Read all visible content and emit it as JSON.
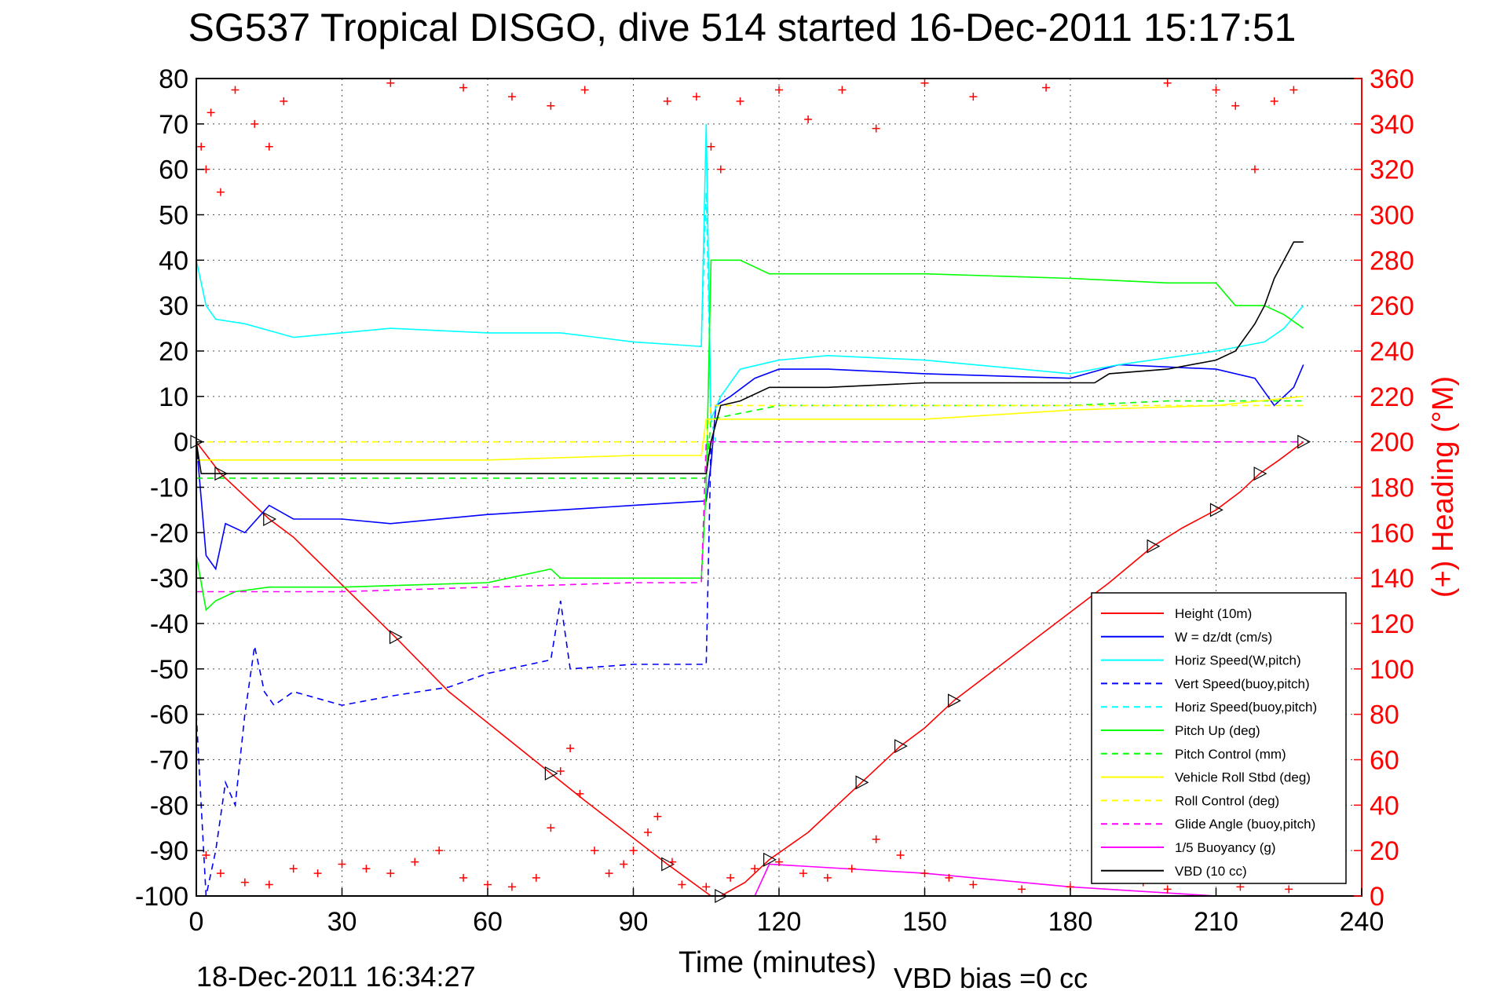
{
  "title": "SG537 Tropical DISGO, dive 514 started 16-Dec-2011 15:17:51",
  "footer": {
    "timestamp": "18-Dec-2011 16:34:27",
    "vbd_bias": "VBD bias =0 cc"
  },
  "colors": {
    "height": "#ff0000",
    "w": "#0000ff",
    "horiz_speed": "#00ffff",
    "pitch": "#00ff00",
    "roll": "#ffff00",
    "glide": "#ff00ff",
    "vbd": "#000000",
    "heading": "#ff0000"
  },
  "chart_data": {
    "type": "line",
    "xlabel": "Time (minutes)",
    "ylabel": "",
    "y2label": "(+) Heading (°M)",
    "xlim": [
      0,
      240
    ],
    "ylim": [
      -100,
      80
    ],
    "y2lim": [
      0,
      360
    ],
    "xticks": [
      "0",
      "30",
      "60",
      "90",
      "120",
      "150",
      "180",
      "210",
      "240"
    ],
    "yticks": [
      "80",
      "70",
      "60",
      "50",
      "40",
      "30",
      "20",
      "10",
      "0",
      "-10",
      "-20",
      "-30",
      "-40",
      "-50",
      "-60",
      "-70",
      "-80",
      "-90",
      "-100"
    ],
    "y2ticks": [
      "360",
      "340",
      "320",
      "300",
      "280",
      "260",
      "240",
      "220",
      "200",
      "180",
      "160",
      "140",
      "120",
      "100",
      "80",
      "60",
      "40",
      "20",
      "0"
    ],
    "grid": true,
    "legend_position": "bottom-right",
    "series": [
      {
        "name": "Height (10m)",
        "style": "solid",
        "color": "#ff0000",
        "points": [
          [
            0,
            0
          ],
          [
            5,
            -7
          ],
          [
            10,
            -12
          ],
          [
            15,
            -17
          ],
          [
            20,
            -21
          ],
          [
            41,
            -43
          ],
          [
            52,
            -55
          ],
          [
            73,
            -73
          ],
          [
            80,
            -79
          ],
          [
            97,
            -93
          ],
          [
            106,
            -100
          ],
          [
            108,
            -100
          ],
          [
            113,
            -97
          ],
          [
            118,
            -92
          ],
          [
            126,
            -86
          ],
          [
            137,
            -75
          ],
          [
            140,
            -72
          ],
          [
            145,
            -67
          ],
          [
            150,
            -63
          ],
          [
            156,
            -57
          ],
          [
            188,
            -31
          ],
          [
            197,
            -23
          ],
          [
            203,
            -19
          ],
          [
            210,
            -15
          ],
          [
            215,
            -11
          ],
          [
            219,
            -7
          ],
          [
            223,
            -4
          ],
          [
            228,
            0
          ]
        ]
      },
      {
        "name": "W = dz/dt (cm/s)",
        "style": "solid",
        "color": "#0000ff",
        "points": [
          [
            0,
            0
          ],
          [
            2,
            -25
          ],
          [
            4,
            -28
          ],
          [
            6,
            -18
          ],
          [
            10,
            -20
          ],
          [
            15,
            -14
          ],
          [
            20,
            -17
          ],
          [
            30,
            -17
          ],
          [
            40,
            -18
          ],
          [
            60,
            -16
          ],
          [
            75,
            -15
          ],
          [
            90,
            -14
          ],
          [
            105,
            -13
          ],
          [
            106,
            -5
          ],
          [
            107,
            8
          ],
          [
            110,
            10
          ],
          [
            115,
            14
          ],
          [
            120,
            16
          ],
          [
            130,
            16
          ],
          [
            150,
            15
          ],
          [
            180,
            14
          ],
          [
            190,
            17
          ],
          [
            210,
            16
          ],
          [
            218,
            14
          ],
          [
            222,
            8
          ],
          [
            226,
            12
          ],
          [
            228,
            17
          ]
        ]
      },
      {
        "name": "Horiz Speed(W,pitch)",
        "style": "solid",
        "color": "#00ffff",
        "points": [
          [
            0,
            40
          ],
          [
            2,
            30
          ],
          [
            4,
            27
          ],
          [
            10,
            26
          ],
          [
            20,
            23
          ],
          [
            40,
            25
          ],
          [
            60,
            24
          ],
          [
            75,
            24
          ],
          [
            90,
            22
          ],
          [
            104,
            21
          ],
          [
            105,
            70
          ],
          [
            106,
            5
          ],
          [
            108,
            10
          ],
          [
            112,
            16
          ],
          [
            120,
            18
          ],
          [
            130,
            19
          ],
          [
            150,
            18
          ],
          [
            180,
            15
          ],
          [
            190,
            17
          ],
          [
            210,
            20
          ],
          [
            220,
            22
          ],
          [
            224,
            25
          ],
          [
            228,
            30
          ]
        ]
      },
      {
        "name": "Vert Speed(buoy,pitch)",
        "style": "dashed",
        "color": "#0000ff",
        "points": [
          [
            0,
            -60
          ],
          [
            2,
            -100
          ],
          [
            4,
            -90
          ],
          [
            6,
            -75
          ],
          [
            8,
            -80
          ],
          [
            10,
            -60
          ],
          [
            12,
            -45
          ],
          [
            14,
            -55
          ],
          [
            16,
            -58
          ],
          [
            20,
            -55
          ],
          [
            30,
            -58
          ],
          [
            40,
            -56
          ],
          [
            52,
            -54
          ],
          [
            60,
            -51
          ],
          [
            73,
            -48
          ],
          [
            75,
            -35
          ],
          [
            77,
            -50
          ],
          [
            90,
            -49
          ],
          [
            105,
            -49
          ],
          [
            106,
            0
          ]
        ]
      },
      {
        "name": "Horiz Speed(buoy,pitch)",
        "style": "dashed",
        "color": "#00ffff",
        "points": [
          [
            104,
            22
          ],
          [
            105,
            55
          ],
          [
            106,
            5
          ],
          [
            107,
            0
          ]
        ]
      },
      {
        "name": "Pitch Up (deg)",
        "style": "solid",
        "color": "#00ff00",
        "points": [
          [
            0,
            -25
          ],
          [
            2,
            -37
          ],
          [
            4,
            -35
          ],
          [
            8,
            -33
          ],
          [
            15,
            -32
          ],
          [
            30,
            -32
          ],
          [
            60,
            -31
          ],
          [
            73,
            -28
          ],
          [
            75,
            -30
          ],
          [
            90,
            -30
          ],
          [
            104,
            -30
          ],
          [
            105,
            -10
          ],
          [
            106,
            40
          ],
          [
            112,
            40
          ],
          [
            118,
            37
          ],
          [
            130,
            37
          ],
          [
            150,
            37
          ],
          [
            180,
            36
          ],
          [
            200,
            35
          ],
          [
            210,
            35
          ],
          [
            214,
            30
          ],
          [
            220,
            30
          ],
          [
            224,
            28
          ],
          [
            228,
            25
          ]
        ]
      },
      {
        "name": "Pitch Control (mm)",
        "style": "dashed",
        "color": "#00ff00",
        "points": [
          [
            0,
            -8
          ],
          [
            105,
            -8
          ],
          [
            106,
            5
          ],
          [
            120,
            8
          ],
          [
            180,
            8
          ],
          [
            200,
            9
          ],
          [
            228,
            9
          ]
        ]
      },
      {
        "name": "Vehicle Roll Stbd (deg)",
        "style": "solid",
        "color": "#ffff00",
        "points": [
          [
            0,
            -4
          ],
          [
            30,
            -4
          ],
          [
            60,
            -4
          ],
          [
            90,
            -3
          ],
          [
            104,
            -3
          ],
          [
            105,
            5
          ],
          [
            120,
            5
          ],
          [
            150,
            5
          ],
          [
            180,
            7
          ],
          [
            210,
            8
          ],
          [
            228,
            10
          ]
        ]
      },
      {
        "name": "Roll Control (deg)",
        "style": "dashed",
        "color": "#ffff00",
        "points": [
          [
            0,
            0
          ],
          [
            105,
            0
          ],
          [
            106,
            8
          ],
          [
            150,
            8
          ],
          [
            180,
            8
          ],
          [
            228,
            8
          ]
        ]
      },
      {
        "name": "Glide Angle (buoy,pitch)",
        "style": "dashed",
        "color": "#ff00ff",
        "points": [
          [
            0,
            -33
          ],
          [
            30,
            -33
          ],
          [
            60,
            -32
          ],
          [
            90,
            -31
          ],
          [
            104,
            -31
          ],
          [
            105,
            0
          ],
          [
            228,
            0
          ]
        ]
      },
      {
        "name": "1/5 Buoyancy (g)",
        "style": "solid",
        "color": "#ff00ff",
        "points": [
          [
            0,
            -100
          ],
          [
            115,
            -100
          ],
          [
            118,
            -93
          ],
          [
            150,
            -95
          ],
          [
            180,
            -98
          ],
          [
            210,
            -100
          ],
          [
            228,
            -100
          ]
        ]
      },
      {
        "name": "VBD (10 cc)",
        "style": "solid",
        "color": "#000000",
        "points": [
          [
            0,
            0
          ],
          [
            1,
            -7
          ],
          [
            105,
            -7
          ],
          [
            106,
            0
          ],
          [
            108,
            8
          ],
          [
            112,
            9
          ],
          [
            118,
            12
          ],
          [
            130,
            12
          ],
          [
            150,
            13
          ],
          [
            185,
            13
          ],
          [
            188,
            15
          ],
          [
            200,
            16
          ],
          [
            210,
            18
          ],
          [
            214,
            20
          ],
          [
            216,
            23
          ],
          [
            218,
            26
          ],
          [
            220,
            30
          ],
          [
            222,
            36
          ],
          [
            224,
            40
          ],
          [
            226,
            44
          ],
          [
            228,
            44
          ]
        ]
      }
    ],
    "heading_series": {
      "name": "(+) Heading",
      "points": [
        [
          1,
          330
        ],
        [
          2,
          320
        ],
        [
          3,
          345
        ],
        [
          5,
          310
        ],
        [
          8,
          355
        ],
        [
          12,
          340
        ],
        [
          15,
          330
        ],
        [
          18,
          350
        ],
        [
          40,
          358
        ],
        [
          55,
          356
        ],
        [
          65,
          352
        ],
        [
          73,
          348
        ],
        [
          80,
          355
        ],
        [
          97,
          350
        ],
        [
          103,
          352
        ],
        [
          106,
          330
        ],
        [
          108,
          320
        ],
        [
          112,
          350
        ],
        [
          120,
          355
        ],
        [
          126,
          342
        ],
        [
          133,
          355
        ],
        [
          140,
          338
        ],
        [
          150,
          358
        ],
        [
          160,
          352
        ],
        [
          175,
          356
        ],
        [
          200,
          358
        ],
        [
          210,
          355
        ],
        [
          214,
          348
        ],
        [
          218,
          320
        ],
        [
          222,
          350
        ],
        [
          226,
          355
        ],
        [
          2,
          18
        ],
        [
          5,
          10
        ],
        [
          10,
          6
        ],
        [
          15,
          5
        ],
        [
          20,
          12
        ],
        [
          25,
          10
        ],
        [
          30,
          14
        ],
        [
          35,
          12
        ],
        [
          40,
          10
        ],
        [
          45,
          15
        ],
        [
          50,
          20
        ],
        [
          55,
          8
        ],
        [
          60,
          5
        ],
        [
          65,
          4
        ],
        [
          70,
          8
        ],
        [
          73,
          30
        ],
        [
          75,
          55
        ],
        [
          77,
          65
        ],
        [
          79,
          45
        ],
        [
          82,
          20
        ],
        [
          85,
          10
        ],
        [
          88,
          14
        ],
        [
          90,
          20
        ],
        [
          93,
          28
        ],
        [
          95,
          35
        ],
        [
          98,
          15
        ],
        [
          100,
          5
        ],
        [
          105,
          4
        ],
        [
          110,
          8
        ],
        [
          115,
          12
        ],
        [
          120,
          15
        ],
        [
          125,
          10
        ],
        [
          130,
          8
        ],
        [
          135,
          12
        ],
        [
          140,
          25
        ],
        [
          145,
          18
        ],
        [
          150,
          10
        ],
        [
          155,
          8
        ],
        [
          160,
          5
        ],
        [
          170,
          3
        ],
        [
          180,
          4
        ],
        [
          195,
          6
        ],
        [
          200,
          3
        ],
        [
          215,
          4
        ],
        [
          225,
          3
        ]
      ]
    }
  }
}
